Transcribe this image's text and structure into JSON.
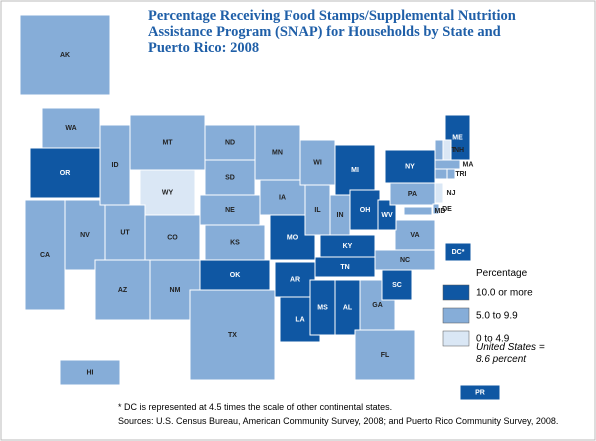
{
  "title": "Percentage Receiving Food Stamps/Supplemental Nutrition Assistance Program (SNAP) for Households by State and Puerto Rico:  2008",
  "legend": {
    "title": "Percentage",
    "items": [
      {
        "label": "10.0 or more",
        "color": "#0f57a3"
      },
      {
        "label": "5.0 to 9.9",
        "color": "#86add8"
      },
      {
        "label": "0 to 4.9",
        "color": "#dae7f5"
      }
    ]
  },
  "annotation": "United States = 8.6 percent",
  "note": "* DC is represented at 4.5 times the scale of other continental states.",
  "sources": "Sources: U.S. Census Bureau, American Community Survey, 2008; and Puerto Rico Community Survey, 2008.",
  "states": [
    {
      "label": "WA",
      "color": "#86add8"
    },
    {
      "label": "OR",
      "color": "#0f57a3"
    },
    {
      "label": "CA",
      "color": "#86add8"
    },
    {
      "label": "NV",
      "color": "#86add8"
    },
    {
      "label": "ID",
      "color": "#86add8"
    },
    {
      "label": "MT",
      "color": "#86add8"
    },
    {
      "label": "WY",
      "color": "#dae7f5"
    },
    {
      "label": "UT",
      "color": "#86add8"
    },
    {
      "label": "CO",
      "color": "#86add8"
    },
    {
      "label": "AZ",
      "color": "#86add8"
    },
    {
      "label": "NM",
      "color": "#86add8"
    },
    {
      "label": "ND",
      "color": "#86add8"
    },
    {
      "label": "SD",
      "color": "#86add8"
    },
    {
      "label": "NE",
      "color": "#86add8"
    },
    {
      "label": "KS",
      "color": "#86add8"
    },
    {
      "label": "OK",
      "color": "#0f57a3"
    },
    {
      "label": "TX",
      "color": "#86add8"
    },
    {
      "label": "MN",
      "color": "#86add8"
    },
    {
      "label": "IA",
      "color": "#86add8"
    },
    {
      "label": "MO",
      "color": "#0f57a3"
    },
    {
      "label": "AR",
      "color": "#0f57a3"
    },
    {
      "label": "LA",
      "color": "#0f57a3"
    },
    {
      "label": "WI",
      "color": "#86add8"
    },
    {
      "label": "IL",
      "color": "#86add8"
    },
    {
      "label": "MI",
      "color": "#0f57a3"
    },
    {
      "label": "IN",
      "color": "#86add8"
    },
    {
      "label": "OH",
      "color": "#0f57a3"
    },
    {
      "label": "KY",
      "color": "#0f57a3"
    },
    {
      "label": "TN",
      "color": "#0f57a3"
    },
    {
      "label": "MS",
      "color": "#0f57a3"
    },
    {
      "label": "AL",
      "color": "#0f57a3"
    },
    {
      "label": "GA",
      "color": "#86add8"
    },
    {
      "label": "FL",
      "color": "#86add8"
    },
    {
      "label": "SC",
      "color": "#0f57a3"
    },
    {
      "label": "NC",
      "color": "#86add8"
    },
    {
      "label": "VA",
      "color": "#86add8"
    },
    {
      "label": "WV",
      "color": "#0f57a3"
    },
    {
      "label": "PA",
      "color": "#86add8"
    },
    {
      "label": "NY",
      "color": "#0f57a3"
    },
    {
      "label": "ME",
      "color": "#0f57a3"
    },
    {
      "label": "VT",
      "color": "#86add8"
    },
    {
      "label": "NH",
      "color": "#dae7f5"
    },
    {
      "label": "MA",
      "color": "#86add8"
    },
    {
      "label": "CT",
      "color": "#86add8"
    },
    {
      "label": "RI",
      "color": "#86add8"
    },
    {
      "label": "NJ",
      "color": "#dae7f5"
    },
    {
      "label": "DE",
      "color": "#86add8"
    },
    {
      "label": "MD",
      "color": "#86add8"
    },
    {
      "label": "DC*",
      "color": "#0f57a3"
    },
    {
      "label": "AK",
      "color": "#86add8"
    },
    {
      "label": "HI",
      "color": "#86add8"
    },
    {
      "label": "PR",
      "color": "#0f57a3"
    }
  ]
}
